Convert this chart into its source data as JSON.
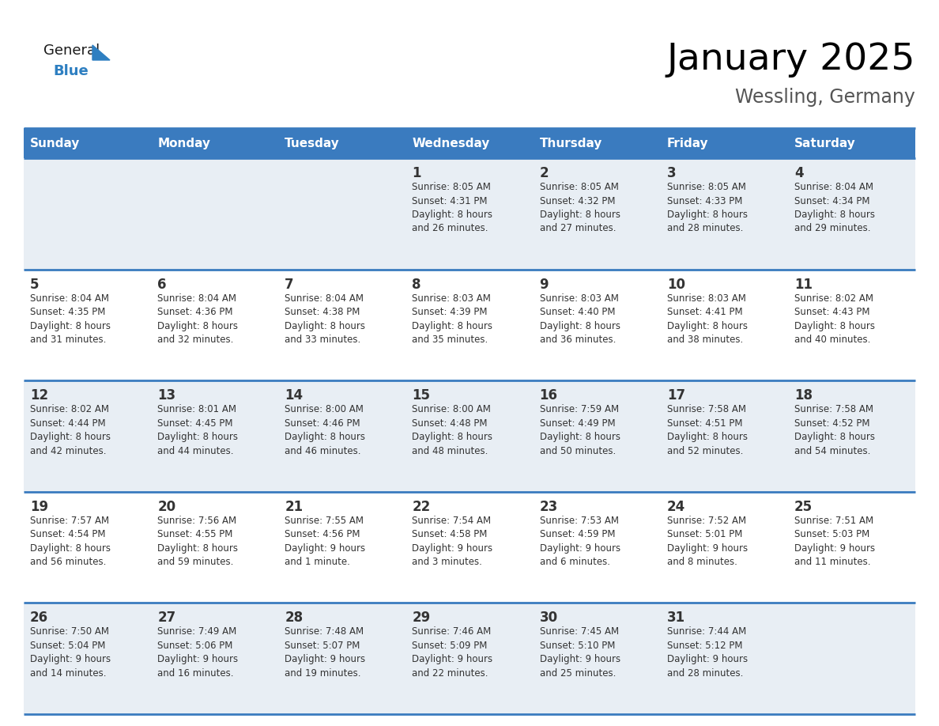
{
  "title": "January 2025",
  "subtitle": "Wessling, Germany",
  "header_color": "#3a7bbf",
  "header_text_color": "#ffffff",
  "cell_bg_row0": "#e8eef4",
  "cell_bg_row1": "#ffffff",
  "cell_bg_row2": "#e8eef4",
  "cell_bg_row3": "#ffffff",
  "cell_bg_row4": "#e8eef4",
  "day_names": [
    "Sunday",
    "Monday",
    "Tuesday",
    "Wednesday",
    "Thursday",
    "Friday",
    "Saturday"
  ],
  "days": [
    {
      "day": 1,
      "col": 3,
      "row": 0,
      "sunrise": "8:05 AM",
      "sunset": "4:31 PM",
      "daylight": "8 hours\nand 26 minutes."
    },
    {
      "day": 2,
      "col": 4,
      "row": 0,
      "sunrise": "8:05 AM",
      "sunset": "4:32 PM",
      "daylight": "8 hours\nand 27 minutes."
    },
    {
      "day": 3,
      "col": 5,
      "row": 0,
      "sunrise": "8:05 AM",
      "sunset": "4:33 PM",
      "daylight": "8 hours\nand 28 minutes."
    },
    {
      "day": 4,
      "col": 6,
      "row": 0,
      "sunrise": "8:04 AM",
      "sunset": "4:34 PM",
      "daylight": "8 hours\nand 29 minutes."
    },
    {
      "day": 5,
      "col": 0,
      "row": 1,
      "sunrise": "8:04 AM",
      "sunset": "4:35 PM",
      "daylight": "8 hours\nand 31 minutes."
    },
    {
      "day": 6,
      "col": 1,
      "row": 1,
      "sunrise": "8:04 AM",
      "sunset": "4:36 PM",
      "daylight": "8 hours\nand 32 minutes."
    },
    {
      "day": 7,
      "col": 2,
      "row": 1,
      "sunrise": "8:04 AM",
      "sunset": "4:38 PM",
      "daylight": "8 hours\nand 33 minutes."
    },
    {
      "day": 8,
      "col": 3,
      "row": 1,
      "sunrise": "8:03 AM",
      "sunset": "4:39 PM",
      "daylight": "8 hours\nand 35 minutes."
    },
    {
      "day": 9,
      "col": 4,
      "row": 1,
      "sunrise": "8:03 AM",
      "sunset": "4:40 PM",
      "daylight": "8 hours\nand 36 minutes."
    },
    {
      "day": 10,
      "col": 5,
      "row": 1,
      "sunrise": "8:03 AM",
      "sunset": "4:41 PM",
      "daylight": "8 hours\nand 38 minutes."
    },
    {
      "day": 11,
      "col": 6,
      "row": 1,
      "sunrise": "8:02 AM",
      "sunset": "4:43 PM",
      "daylight": "8 hours\nand 40 minutes."
    },
    {
      "day": 12,
      "col": 0,
      "row": 2,
      "sunrise": "8:02 AM",
      "sunset": "4:44 PM",
      "daylight": "8 hours\nand 42 minutes."
    },
    {
      "day": 13,
      "col": 1,
      "row": 2,
      "sunrise": "8:01 AM",
      "sunset": "4:45 PM",
      "daylight": "8 hours\nand 44 minutes."
    },
    {
      "day": 14,
      "col": 2,
      "row": 2,
      "sunrise": "8:00 AM",
      "sunset": "4:46 PM",
      "daylight": "8 hours\nand 46 minutes."
    },
    {
      "day": 15,
      "col": 3,
      "row": 2,
      "sunrise": "8:00 AM",
      "sunset": "4:48 PM",
      "daylight": "8 hours\nand 48 minutes."
    },
    {
      "day": 16,
      "col": 4,
      "row": 2,
      "sunrise": "7:59 AM",
      "sunset": "4:49 PM",
      "daylight": "8 hours\nand 50 minutes."
    },
    {
      "day": 17,
      "col": 5,
      "row": 2,
      "sunrise": "7:58 AM",
      "sunset": "4:51 PM",
      "daylight": "8 hours\nand 52 minutes."
    },
    {
      "day": 18,
      "col": 6,
      "row": 2,
      "sunrise": "7:58 AM",
      "sunset": "4:52 PM",
      "daylight": "8 hours\nand 54 minutes."
    },
    {
      "day": 19,
      "col": 0,
      "row": 3,
      "sunrise": "7:57 AM",
      "sunset": "4:54 PM",
      "daylight": "8 hours\nand 56 minutes."
    },
    {
      "day": 20,
      "col": 1,
      "row": 3,
      "sunrise": "7:56 AM",
      "sunset": "4:55 PM",
      "daylight": "8 hours\nand 59 minutes."
    },
    {
      "day": 21,
      "col": 2,
      "row": 3,
      "sunrise": "7:55 AM",
      "sunset": "4:56 PM",
      "daylight": "9 hours\nand 1 minute."
    },
    {
      "day": 22,
      "col": 3,
      "row": 3,
      "sunrise": "7:54 AM",
      "sunset": "4:58 PM",
      "daylight": "9 hours\nand 3 minutes."
    },
    {
      "day": 23,
      "col": 4,
      "row": 3,
      "sunrise": "7:53 AM",
      "sunset": "4:59 PM",
      "daylight": "9 hours\nand 6 minutes."
    },
    {
      "day": 24,
      "col": 5,
      "row": 3,
      "sunrise": "7:52 AM",
      "sunset": "5:01 PM",
      "daylight": "9 hours\nand 8 minutes."
    },
    {
      "day": 25,
      "col": 6,
      "row": 3,
      "sunrise": "7:51 AM",
      "sunset": "5:03 PM",
      "daylight": "9 hours\nand 11 minutes."
    },
    {
      "day": 26,
      "col": 0,
      "row": 4,
      "sunrise": "7:50 AM",
      "sunset": "5:04 PM",
      "daylight": "9 hours\nand 14 minutes."
    },
    {
      "day": 27,
      "col": 1,
      "row": 4,
      "sunrise": "7:49 AM",
      "sunset": "5:06 PM",
      "daylight": "9 hours\nand 16 minutes."
    },
    {
      "day": 28,
      "col": 2,
      "row": 4,
      "sunrise": "7:48 AM",
      "sunset": "5:07 PM",
      "daylight": "9 hours\nand 19 minutes."
    },
    {
      "day": 29,
      "col": 3,
      "row": 4,
      "sunrise": "7:46 AM",
      "sunset": "5:09 PM",
      "daylight": "9 hours\nand 22 minutes."
    },
    {
      "day": 30,
      "col": 4,
      "row": 4,
      "sunrise": "7:45 AM",
      "sunset": "5:10 PM",
      "daylight": "9 hours\nand 25 minutes."
    },
    {
      "day": 31,
      "col": 5,
      "row": 4,
      "sunrise": "7:44 AM",
      "sunset": "5:12 PM",
      "daylight": "9 hours\nand 28 minutes."
    }
  ],
  "num_rows": 5,
  "num_cols": 7,
  "header_font_size": 11,
  "day_num_font_size": 11,
  "info_font_size": 8.5,
  "title_font_size": 34,
  "subtitle_font_size": 17,
  "divider_color": "#3a7bbf",
  "text_color": "#333333",
  "logo_general_color": "#1a1a1a",
  "logo_blue_color": "#2e7fc1"
}
